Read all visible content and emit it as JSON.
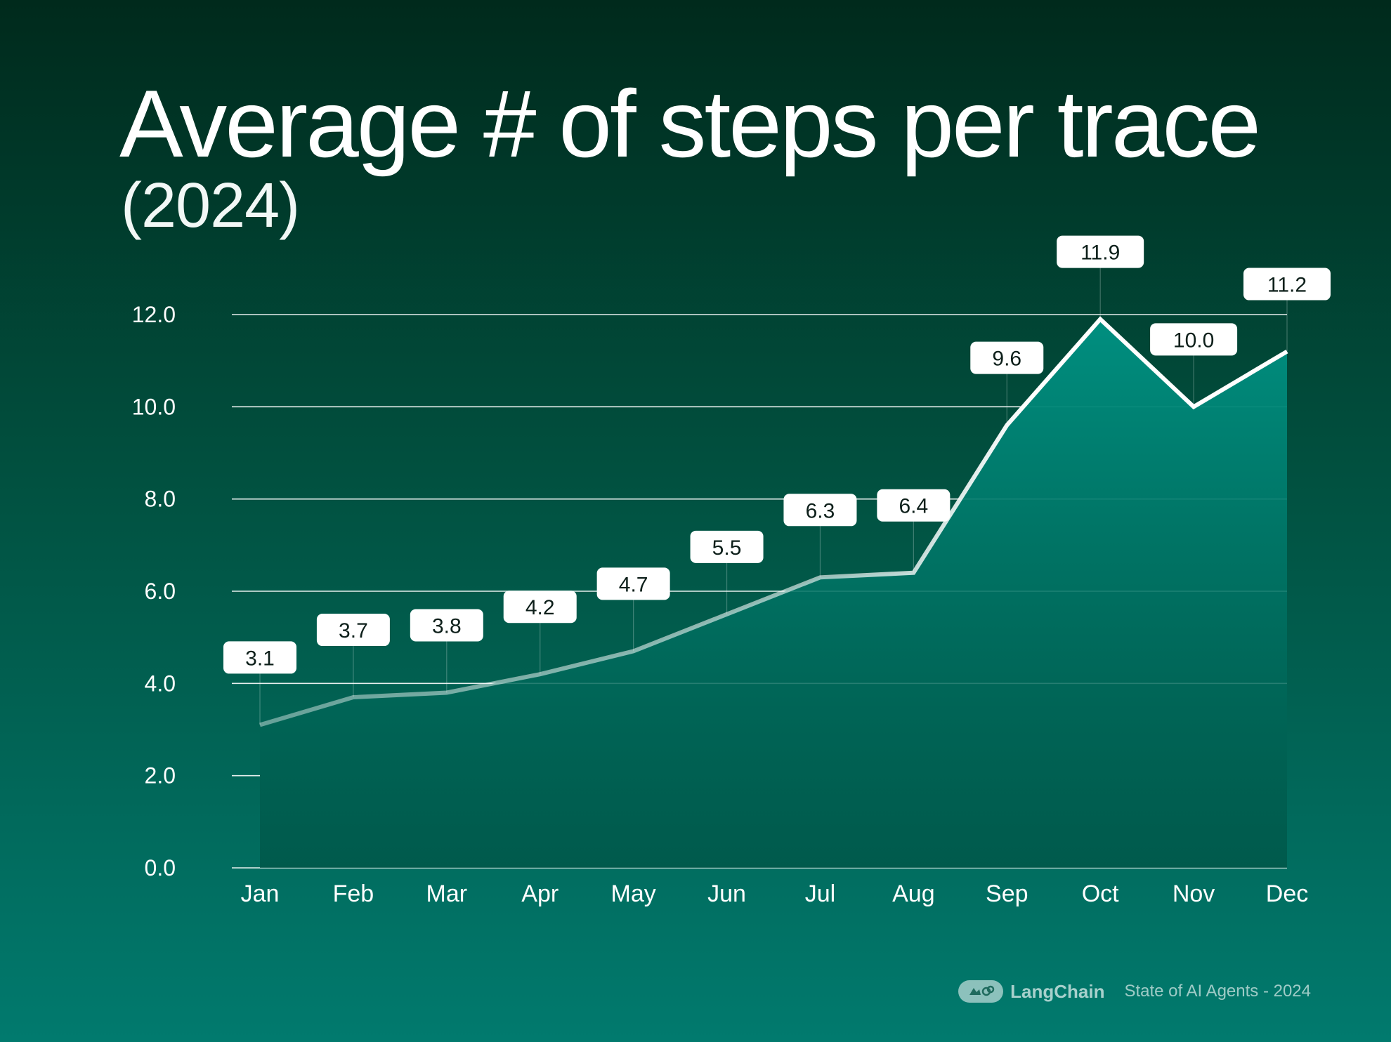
{
  "chart_data": {
    "type": "area",
    "title": "Average # of steps per trace",
    "subtitle": "(2024)",
    "xlabel": "",
    "ylabel": "",
    "ylim": [
      0,
      12
    ],
    "yticks": [
      "0.0",
      "2.0",
      "4.0",
      "6.0",
      "8.0",
      "10.0",
      "12.0"
    ],
    "categories": [
      "Jan",
      "Feb",
      "Mar",
      "Apr",
      "May",
      "Jun",
      "Jul",
      "Aug",
      "Sep",
      "Oct",
      "Nov",
      "Dec"
    ],
    "values": [
      3.1,
      3.7,
      3.8,
      4.2,
      4.7,
      5.5,
      6.3,
      6.4,
      9.6,
      11.9,
      10.0,
      11.2
    ],
    "value_labels": [
      "3.1",
      "3.7",
      "3.8",
      "4.2",
      "4.7",
      "5.5",
      "6.3",
      "6.4",
      "9.6",
      "11.9",
      "10.0",
      "11.2"
    ],
    "grid": true
  },
  "footer": {
    "brand": "LangChain",
    "source": "State of AI Agents - 2024"
  },
  "colors": {
    "line": "#ffffff",
    "area_top": "#008f80",
    "area_bottom": "#005446",
    "label_bg": "#ffffff",
    "label_text": "#0d1f1a"
  }
}
